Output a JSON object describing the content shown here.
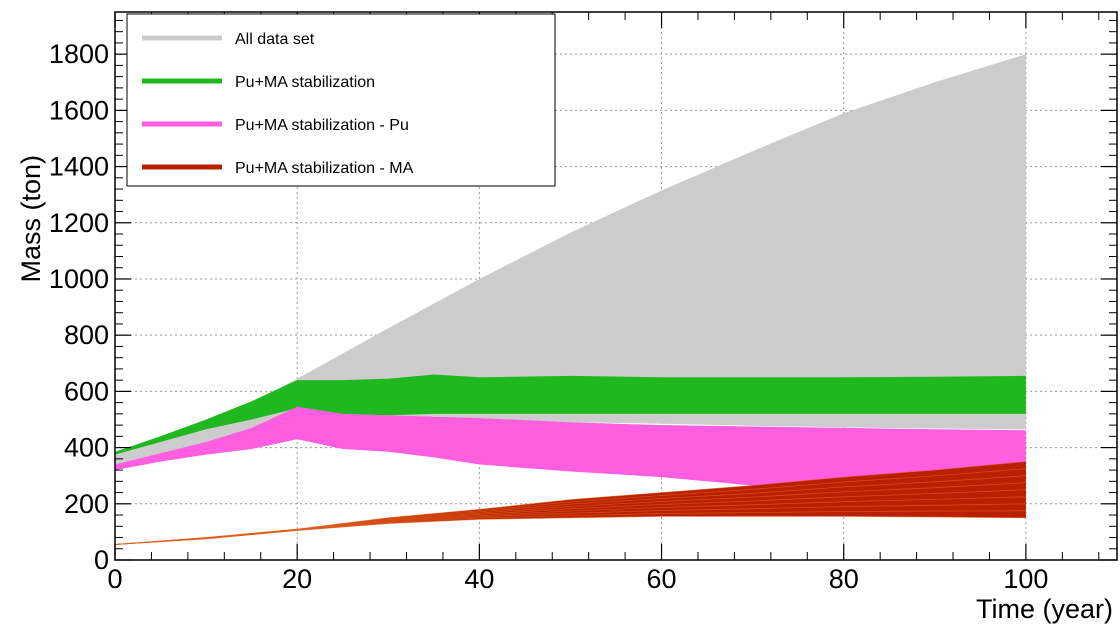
{
  "chart_data": {
    "type": "area",
    "xlabel": "Time (year)",
    "ylabel": "Mass (ton)",
    "xlim": [
      0,
      110
    ],
    "ylim": [
      0,
      1950
    ],
    "x_ticks": [
      0,
      20,
      40,
      60,
      80,
      100
    ],
    "y_ticks": [
      0,
      200,
      400,
      600,
      800,
      1000,
      1200,
      1400,
      1600,
      1800
    ],
    "grid": true,
    "legend_position": "top-left",
    "legend": [
      {
        "label": "All data set",
        "color": "#cccccc"
      },
      {
        "label": "Pu+MA stabilization",
        "color": "#1fb81f"
      },
      {
        "label": "Pu+MA stabilization - Pu",
        "color": "#ff5ee0"
      },
      {
        "label": "Pu+MA stabilization - MA",
        "color": "#b82000"
      }
    ],
    "series": [
      {
        "name": "All data set",
        "x": [
          0,
          5,
          10,
          15,
          20,
          30,
          40,
          50,
          60,
          70,
          80,
          90,
          100
        ],
        "upper": [
          380,
          430,
          490,
          560,
          645,
          825,
          1000,
          1165,
          1315,
          1455,
          1590,
          1700,
          1800
        ],
        "lower": [
          320,
          360,
          395,
          430,
          500,
          505,
          500,
          490,
          485,
          478,
          472,
          468,
          465
        ]
      },
      {
        "name": "Pu+MA stabilization",
        "x": [
          0,
          5,
          10,
          15,
          20,
          25,
          30,
          35,
          40,
          50,
          60,
          70,
          80,
          90,
          100
        ],
        "upper": [
          385,
          440,
          500,
          565,
          640,
          640,
          645,
          660,
          650,
          655,
          650,
          650,
          650,
          652,
          655
        ],
        "lower": [
          375,
          420,
          465,
          500,
          540,
          520,
          515,
          520,
          520,
          520,
          520,
          520,
          520,
          520,
          520
        ]
      },
      {
        "name": "Pu+MA stabilization - Pu",
        "x": [
          0,
          5,
          10,
          15,
          20,
          25,
          30,
          35,
          40,
          50,
          60,
          70,
          80,
          90,
          100
        ],
        "upper": [
          340,
          380,
          420,
          470,
          545,
          520,
          515,
          510,
          505,
          490,
          480,
          475,
          470,
          465,
          462
        ],
        "lower": [
          320,
          350,
          375,
          395,
          430,
          395,
          385,
          365,
          340,
          315,
          295,
          265,
          245,
          230,
          210
        ]
      },
      {
        "name": "Pu+MA stabilization - MA",
        "x": [
          0,
          10,
          20,
          30,
          40,
          50,
          60,
          70,
          80,
          90,
          100
        ],
        "upper": [
          55,
          80,
          110,
          150,
          180,
          215,
          240,
          265,
          295,
          320,
          350
        ],
        "lower": [
          55,
          75,
          105,
          130,
          145,
          150,
          155,
          155,
          155,
          153,
          150
        ]
      }
    ]
  }
}
